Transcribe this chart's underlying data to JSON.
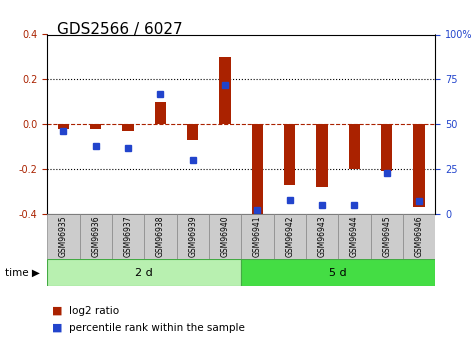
{
  "title": "GDS2566 / 6027",
  "samples": [
    "GSM96935",
    "GSM96936",
    "GSM96937",
    "GSM96938",
    "GSM96939",
    "GSM96940",
    "GSM96941",
    "GSM96942",
    "GSM96943",
    "GSM96944",
    "GSM96945",
    "GSM96946"
  ],
  "log2_ratio": [
    -0.02,
    -0.02,
    -0.03,
    0.1,
    -0.07,
    0.3,
    -0.4,
    -0.27,
    -0.28,
    -0.2,
    -0.21,
    -0.37
  ],
  "percentile_rank": [
    46,
    38,
    37,
    67,
    30,
    72,
    2,
    8,
    5,
    5,
    23,
    7
  ],
  "group_labels": [
    "2 d",
    "5 d"
  ],
  "bar_color": "#aa2200",
  "dot_color": "#2244cc",
  "group_colors": [
    "#b8f0b0",
    "#44dd44"
  ],
  "ylim": [
    -0.4,
    0.4
  ],
  "right_ylim": [
    0,
    100
  ],
  "yticks_left": [
    -0.4,
    -0.2,
    0.0,
    0.2,
    0.4
  ],
  "yticks_right": [
    0,
    25,
    50,
    75,
    100
  ],
  "title_fontsize": 11,
  "tick_fontsize": 7,
  "label_fontsize": 8
}
